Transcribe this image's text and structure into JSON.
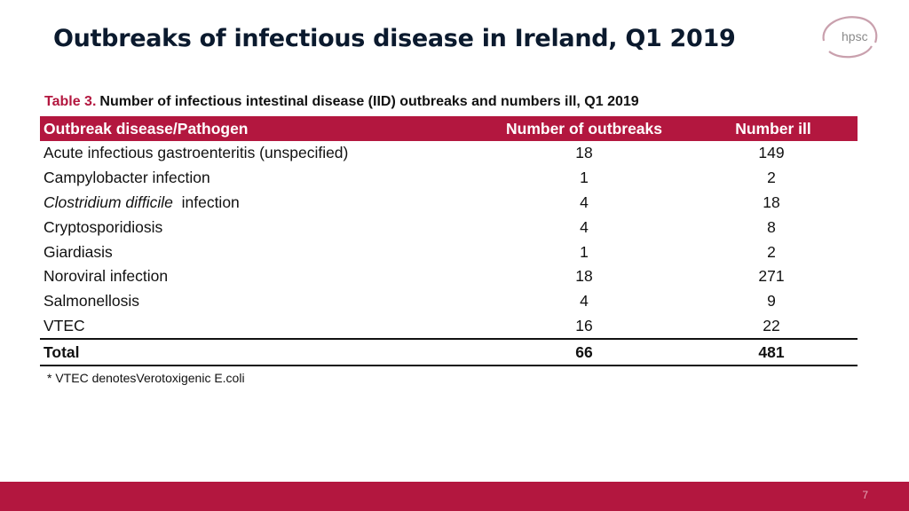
{
  "slide": {
    "title": "Outbreaks of infectious disease in Ireland, Q1 2019",
    "logo_text": "hpsc"
  },
  "table": {
    "caption_label": "Table 3.",
    "caption_text": "Number of infectious intestinal disease (IID) outbreaks and numbers ill, Q1 2019",
    "headers": [
      "Outbreak disease/Pathogen",
      "Number of outbreaks",
      "Number ill"
    ],
    "rows": [
      {
        "disease": "Acute infectious gastroenteritis (unspecified)",
        "outbreaks": "18",
        "ill": "149"
      },
      {
        "disease": "Campylobacter infection",
        "outbreaks": "1",
        "ill": "2"
      },
      {
        "disease_italic": "Clostridium difficile",
        "disease_rest": "infection",
        "outbreaks": "4",
        "ill": "18"
      },
      {
        "disease": "Cryptosporidiosis",
        "outbreaks": "4",
        "ill": "8"
      },
      {
        "disease": "Giardiasis",
        "outbreaks": "1",
        "ill": "2"
      },
      {
        "disease": "Noroviral infection",
        "outbreaks": "18",
        "ill": "271"
      },
      {
        "disease": "Salmonellosis",
        "outbreaks": "4",
        "ill": "9"
      },
      {
        "disease": "VTEC",
        "outbreaks": "16",
        "ill": "22"
      }
    ],
    "total": {
      "label": "Total",
      "outbreaks": "66",
      "ill": "481"
    }
  },
  "footnote": "* VTEC denotesVerotoxigenic E.coli",
  "footer": {
    "page_number": "7"
  },
  "colors": {
    "accent": "#b3173f",
    "title": "#0b1a2e"
  }
}
